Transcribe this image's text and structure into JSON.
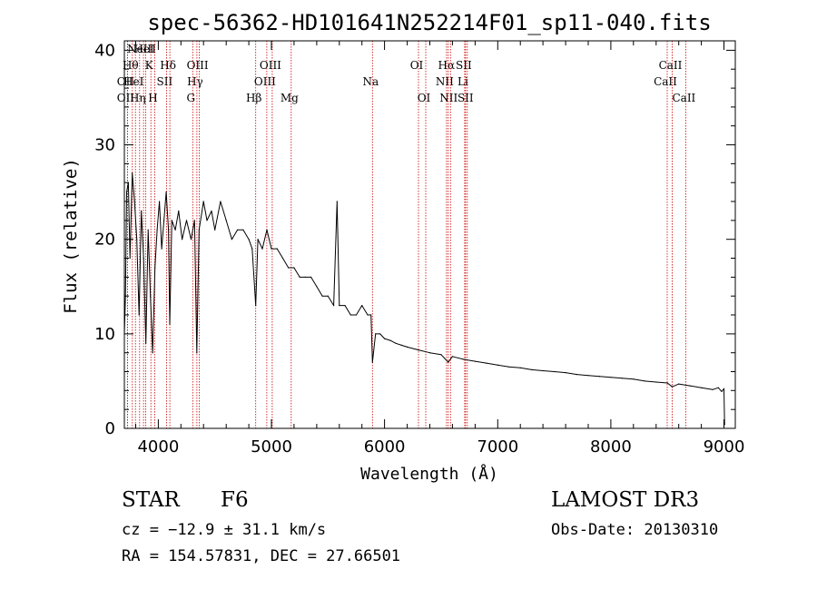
{
  "chart_data": {
    "type": "line",
    "title": "spec-56362-HD101641N252214F01_sp11-040.fits",
    "xlabel": "Wavelength (Å)",
    "ylabel": "Flux (relative)",
    "xlim": [
      3700,
      9100
    ],
    "ylim": [
      0,
      41
    ],
    "xticks": [
      4000,
      5000,
      6000,
      7000,
      8000,
      9000
    ],
    "yticks": [
      0,
      10,
      20,
      30,
      40
    ],
    "line_color": "#000000",
    "marker_color": "#cc0000",
    "series": [
      {
        "name": "spectrum",
        "x": [
          3700,
          3710,
          3720,
          3735,
          3750,
          3770,
          3790,
          3810,
          3830,
          3850,
          3870,
          3890,
          3910,
          3930,
          3950,
          3970,
          3990,
          4010,
          4030,
          4050,
          4070,
          4090,
          4101,
          4120,
          4150,
          4180,
          4210,
          4250,
          4290,
          4320,
          4340,
          4360,
          4400,
          4430,
          4470,
          4500,
          4550,
          4600,
          4650,
          4700,
          4750,
          4800,
          4830,
          4861,
          4880,
          4920,
          4960,
          5000,
          5050,
          5100,
          5150,
          5200,
          5250,
          5300,
          5350,
          5400,
          5450,
          5500,
          5550,
          5580,
          5600,
          5650,
          5700,
          5750,
          5800,
          5850,
          5880,
          5893,
          5920,
          5960,
          6000,
          6050,
          6100,
          6150,
          6200,
          6300,
          6400,
          6500,
          6563,
          6600,
          6700,
          6800,
          6900,
          7000,
          7100,
          7200,
          7300,
          7400,
          7500,
          7600,
          7700,
          7800,
          7900,
          8000,
          8100,
          8200,
          8300,
          8400,
          8500,
          8542,
          8600,
          8700,
          8800,
          8900,
          8950,
          8980,
          9000,
          9005
        ],
        "y": [
          10,
          14,
          25,
          26,
          18,
          27,
          24,
          20,
          12,
          23,
          18,
          9,
          21,
          14,
          8,
          17,
          21,
          24,
          19,
          22,
          25,
          21,
          11,
          22,
          21,
          23,
          20,
          22,
          20,
          22,
          8,
          21,
          24,
          22,
          23,
          21,
          24,
          22,
          20,
          21,
          21,
          20,
          19,
          13,
          20,
          19,
          21,
          19,
          19,
          18,
          17,
          17,
          16,
          16,
          16,
          15,
          14,
          14,
          13,
          24,
          13,
          13,
          12,
          12,
          13,
          12,
          12,
          7,
          10,
          10,
          9.5,
          9.3,
          9.0,
          8.8,
          8.6,
          8.3,
          8.0,
          7.8,
          7.0,
          7.6,
          7.3,
          7.1,
          6.9,
          6.7,
          6.5,
          6.4,
          6.2,
          6.1,
          6.0,
          5.9,
          5.7,
          5.6,
          5.5,
          5.4,
          5.3,
          5.2,
          5.0,
          4.9,
          4.8,
          4.4,
          4.7,
          4.5,
          4.3,
          4.1,
          4.3,
          3.9,
          4.2,
          0.4
        ]
      }
    ],
    "line_markers": [
      {
        "x": 3727,
        "label": "OII",
        "row": 2
      },
      {
        "x": 3727,
        "label": "OII",
        "row": 3
      },
      {
        "x": 3771,
        "label": "Hθ",
        "row": 1
      },
      {
        "x": 3798,
        "label": "HeI",
        "row": 2
      },
      {
        "x": 3835,
        "label": "Hη",
        "row": 3
      },
      {
        "x": 3869,
        "label": "NeIII",
        "row": 0
      },
      {
        "x": 3889,
        "label": "HeI",
        "row": 0
      },
      {
        "x": 3934,
        "label": "K",
        "row": 1
      },
      {
        "x": 3969,
        "label": "H",
        "row": 3
      },
      {
        "x": 4072,
        "label": "SII",
        "row": 2
      },
      {
        "x": 4102,
        "label": "Hδ",
        "row": 1
      },
      {
        "x": 4304,
        "label": "G",
        "row": 3
      },
      {
        "x": 4341,
        "label": "Hγ",
        "row": 2
      },
      {
        "x": 4363,
        "label": "OIII",
        "row": 1
      },
      {
        "x": 4861,
        "label": "Hβ",
        "row": 3
      },
      {
        "x": 4959,
        "label": "OIII",
        "row": 2
      },
      {
        "x": 5007,
        "label": "OIII",
        "row": 1
      },
      {
        "x": 5175,
        "label": "Mg",
        "row": 3
      },
      {
        "x": 5893,
        "label": "Na",
        "row": 2
      },
      {
        "x": 6300,
        "label": "OI",
        "row": 1
      },
      {
        "x": 6364,
        "label": "OI",
        "row": 3
      },
      {
        "x": 6548,
        "label": "NII",
        "row": 2
      },
      {
        "x": 6563,
        "label": "Hα",
        "row": 1
      },
      {
        "x": 6583,
        "label": "NII",
        "row": 3
      },
      {
        "x": 6708,
        "label": "Li",
        "row": 2
      },
      {
        "x": 6716,
        "label": "SII",
        "row": 1
      },
      {
        "x": 6731,
        "label": "SII",
        "row": 3
      },
      {
        "x": 8498,
        "label": "CaII",
        "row": 2
      },
      {
        "x": 8542,
        "label": "CaII",
        "row": 1
      },
      {
        "x": 8662,
        "label": "CaII",
        "row": 3
      }
    ]
  },
  "info": {
    "object_class": "STAR",
    "subclass": "F6",
    "survey": "LAMOST DR3",
    "cz": "cz = −12.9 ± 31.1 km/s",
    "obs_date": "Obs-Date: 20130310",
    "coords": "RA = 154.57831, DEC =  27.66501"
  }
}
